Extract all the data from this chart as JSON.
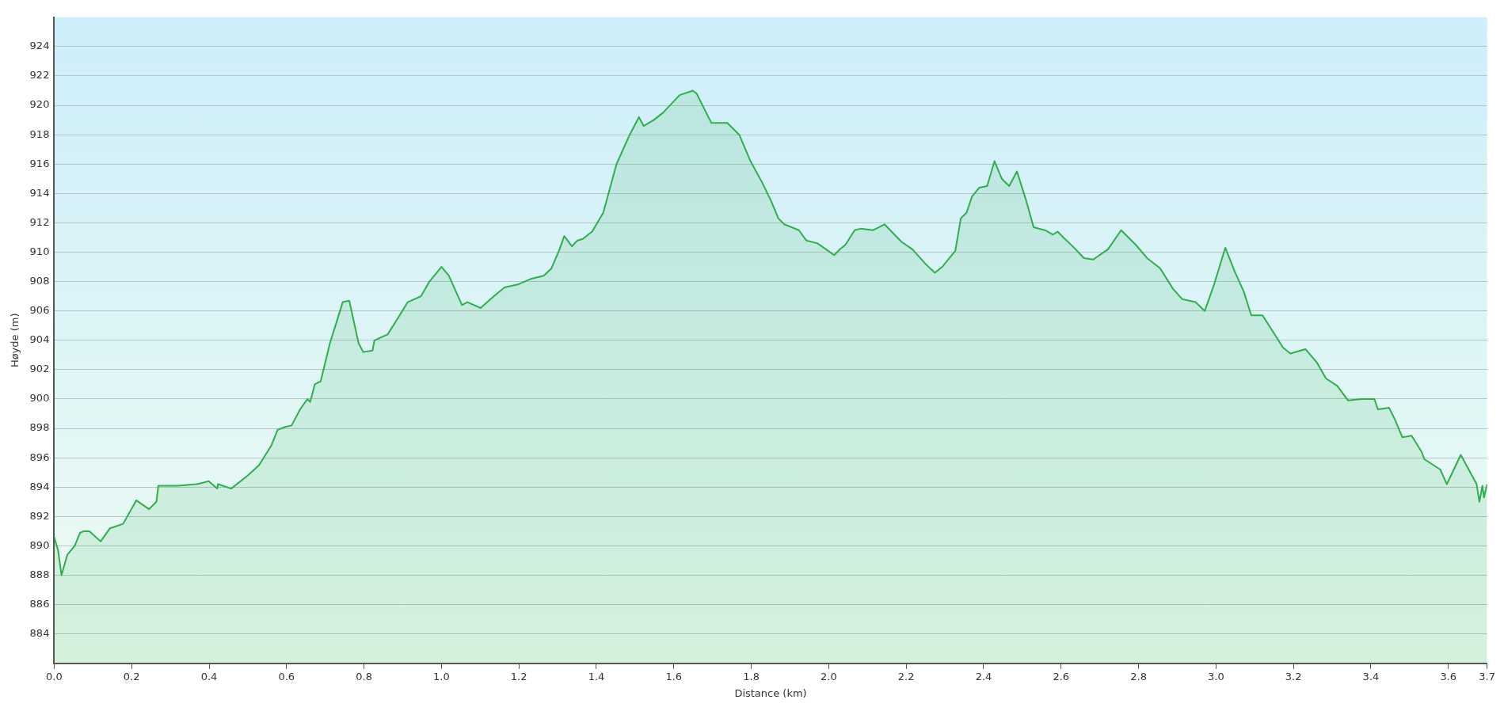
{
  "chart_data": {
    "type": "area",
    "xlabel": "Distance (km)",
    "ylabel": "Høyde (m)",
    "xlim": [
      0,
      3.7
    ],
    "ylim": [
      882,
      926
    ],
    "xticks": [
      {
        "value": 0,
        "label": "0.0"
      },
      0.2,
      0.4,
      0.6,
      0.8,
      {
        "value": 1,
        "label": "1.0"
      },
      1.2,
      1.4,
      1.6,
      1.8,
      {
        "value": 2,
        "label": "2.0"
      },
      2.2,
      2.4,
      2.6,
      2.8,
      {
        "value": 3,
        "label": "3.0"
      },
      3.2,
      3.4,
      3.6,
      3.7
    ],
    "yticks": [
      884,
      886,
      888,
      890,
      892,
      894,
      896,
      898,
      900,
      902,
      904,
      906,
      908,
      910,
      912,
      914,
      916,
      918,
      920,
      922,
      924
    ],
    "grid": "y",
    "legend": false,
    "marker": "none",
    "line_style": "solid",
    "series": [
      {
        "color": "#2eaf4b",
        "x": [
          0,
          0.01,
          0.019,
          0.034,
          0.053,
          0.067,
          0.077,
          0.091,
          0.12,
          0.144,
          0.178,
          0.212,
          0.245,
          0.264,
          0.269,
          0.32,
          0.368,
          0.399,
          0.421,
          0.423,
          0.457,
          0.5,
          0.529,
          0.56,
          0.577,
          0.596,
          0.613,
          0.635,
          0.654,
          0.661,
          0.673,
          0.688,
          0.712,
          0.731,
          0.745,
          0.762,
          0.786,
          0.798,
          0.822,
          0.827,
          0.861,
          0.885,
          0.913,
          0.947,
          0.969,
          1.0,
          1.019,
          1.053,
          1.067,
          1.101,
          1.135,
          1.163,
          1.197,
          1.233,
          1.264,
          1.284,
          1.305,
          1.317,
          1.337,
          1.351,
          1.365,
          1.389,
          1.418,
          1.452,
          1.486,
          1.51,
          1.522,
          1.548,
          1.572,
          1.615,
          1.649,
          1.659,
          1.697,
          1.714,
          1.738,
          1.769,
          1.798,
          1.829,
          1.851,
          1.87,
          1.885,
          1.923,
          1.942,
          1.971,
          1.998,
          2.014,
          2.029,
          2.043,
          2.067,
          2.082,
          2.115,
          2.144,
          2.188,
          2.216,
          2.25,
          2.274,
          2.293,
          2.327,
          2.341,
          2.356,
          2.37,
          2.389,
          2.409,
          2.428,
          2.447,
          2.466,
          2.486,
          2.51,
          2.529,
          2.558,
          2.579,
          2.591,
          2.606,
          2.63,
          2.659,
          2.683,
          2.721,
          2.755,
          2.793,
          2.822,
          2.856,
          2.889,
          2.913,
          2.947,
          2.971,
          2.995,
          3.024,
          3.048,
          3.072,
          3.091,
          3.12,
          3.154,
          3.173,
          3.192,
          3.231,
          3.26,
          3.284,
          3.313,
          3.341,
          3.375,
          3.409,
          3.418,
          3.447,
          3.462,
          3.481,
          3.505,
          3.531,
          3.538,
          3.579,
          3.596,
          3.632,
          3.673,
          3.68,
          3.688,
          3.692,
          3.7
        ],
        "values": [
          890.6,
          889.7,
          888.0,
          889.4,
          890.0,
          890.9,
          891.0,
          891.0,
          890.3,
          891.2,
          891.5,
          893.1,
          892.5,
          893.0,
          894.1,
          894.1,
          894.2,
          894.4,
          893.9,
          894.2,
          893.9,
          894.8,
          895.5,
          896.8,
          897.9,
          898.1,
          898.2,
          899.3,
          900.0,
          899.8,
          901.0,
          901.2,
          903.8,
          905.4,
          906.6,
          906.7,
          903.8,
          903.2,
          903.3,
          904.0,
          904.4,
          905.4,
          906.6,
          907.0,
          908.0,
          909.0,
          908.4,
          906.4,
          906.6,
          906.2,
          907.0,
          907.6,
          907.8,
          908.2,
          908.4,
          908.9,
          910.2,
          911.1,
          910.4,
          910.8,
          910.9,
          911.4,
          912.7,
          916.0,
          918.0,
          919.2,
          918.6,
          919.0,
          919.5,
          920.7,
          921.0,
          920.8,
          918.8,
          918.8,
          918.8,
          918.0,
          916.2,
          914.7,
          913.5,
          912.3,
          911.9,
          911.5,
          910.8,
          910.6,
          910.1,
          909.8,
          910.2,
          910.5,
          911.5,
          911.6,
          911.5,
          911.9,
          910.7,
          910.2,
          909.2,
          908.6,
          909.0,
          910.1,
          912.3,
          912.7,
          913.8,
          914.4,
          914.5,
          916.2,
          915.0,
          914.5,
          915.5,
          913.5,
          911.7,
          911.5,
          911.2,
          911.4,
          911.0,
          910.4,
          909.6,
          909.5,
          910.2,
          911.5,
          910.5,
          909.6,
          908.9,
          907.5,
          906.8,
          906.6,
          906.0,
          907.8,
          910.3,
          908.7,
          907.3,
          905.7,
          905.7,
          904.3,
          903.5,
          903.1,
          903.4,
          902.5,
          901.4,
          900.9,
          899.9,
          900.0,
          900.0,
          899.3,
          899.4,
          898.6,
          897.4,
          897.5,
          896.4,
          895.9,
          895.2,
          894.2,
          896.2,
          894.2,
          893.0,
          894.1,
          893.3,
          894.2
        ]
      }
    ]
  }
}
